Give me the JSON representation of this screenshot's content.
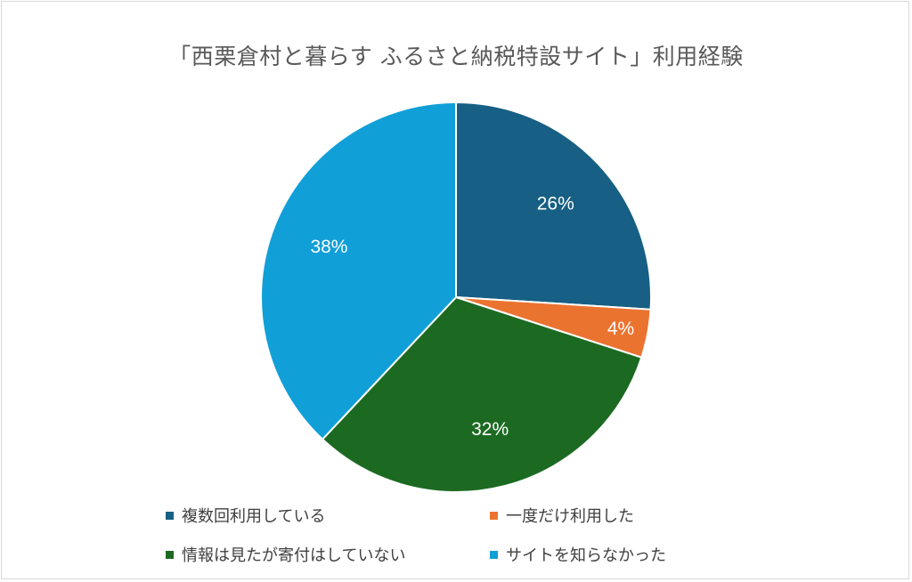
{
  "chart_data": {
    "type": "pie",
    "title": "「西栗倉村と暮らす ふるさと納税特設サイト」利用経験",
    "categories": [
      "複数回利用している",
      "一度だけ利用した",
      "情報は見たが寄付はしていない",
      "サイトを知らなかった"
    ],
    "values": [
      26,
      4,
      32,
      38
    ],
    "labels": [
      "26%",
      "4%",
      "32%",
      "38%"
    ],
    "colors": [
      "#175f84",
      "#eb7330",
      "#1c6a22",
      "#119fd8"
    ],
    "legend_position": "bottom"
  }
}
